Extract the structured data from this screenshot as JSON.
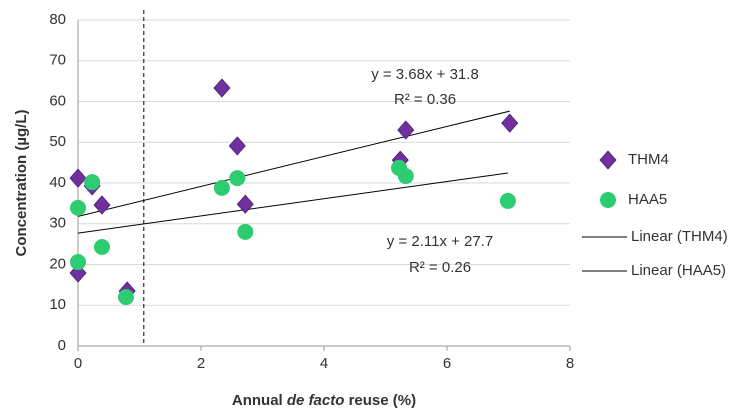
{
  "chart_data": {
    "type": "scatter",
    "x_label_parts": [
      "Annual ",
      "de facto",
      " reuse (%)"
    ],
    "y_label": "Concentration (µg/L)",
    "xlim": [
      0,
      8
    ],
    "xticks": [
      0,
      2,
      4,
      6,
      8
    ],
    "ylim": [
      0,
      80
    ],
    "yticks": [
      0,
      10,
      20,
      30,
      40,
      50,
      60,
      70,
      80
    ],
    "grid": true,
    "reference_line_x": 1.07,
    "series": [
      {
        "name": "THM4",
        "color": "#7030a0",
        "marker": "diamond",
        "x": [
          0,
          0.23,
          0.39,
          0,
          0.8,
          2.34,
          2.59,
          2.72,
          5.24,
          5.33,
          7.02
        ],
        "values": [
          41.2,
          39.3,
          34.6,
          17.9,
          13.5,
          63.3,
          49.1,
          34.8,
          45.6,
          53,
          54.7
        ],
        "trendline": {
          "name": "Linear (THM4)",
          "color": "#000000",
          "slope": 3.68,
          "intercept": 31.8,
          "equation": "y = 3.68x + 31.8",
          "r2": "R² = 0.36"
        }
      },
      {
        "name": "HAA5",
        "color": "#2ecc71",
        "marker": "circle",
        "x": [
          0,
          0.23,
          0.39,
          0,
          0.78,
          2.34,
          2.59,
          2.72,
          5.22,
          5.33,
          6.99
        ],
        "values": [
          33.9,
          40.2,
          24.3,
          20.6,
          12,
          38.8,
          41.2,
          28,
          43.7,
          41.7,
          35.6
        ],
        "trendline": {
          "name": "Linear (HAA5)",
          "color": "#000000",
          "slope": 2.11,
          "intercept": 27.7,
          "equation": "y = 2.11x + 27.7",
          "r2": "R² = 0.26"
        }
      }
    ]
  }
}
